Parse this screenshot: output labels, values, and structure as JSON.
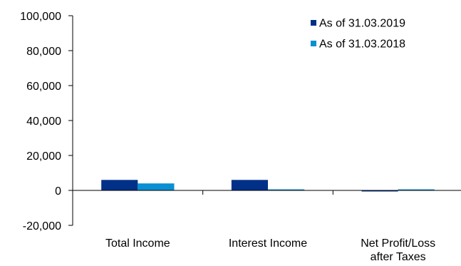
{
  "chart_data": {
    "type": "bar",
    "title": "",
    "xlabel": "",
    "ylabel": "",
    "categories": [
      [
        "Total Income"
      ],
      [
        "Interest Income"
      ],
      [
        "Net Profit/Loss",
        "after Taxes"
      ]
    ],
    "series": [
      {
        "name": "As of 31.03.2019",
        "color": "#003087",
        "values": [
          6000,
          6000,
          -500
        ]
      },
      {
        "name": "As of 31.03.2018",
        "color": "#0a8fd3",
        "values": [
          4000,
          0,
          500
        ]
      }
    ],
    "ylim": [
      -20000,
      100000
    ],
    "yticks": [
      -20000,
      0,
      20000,
      40000,
      60000,
      80000,
      100000
    ],
    "ytick_labels": [
      "-20,000",
      "0",
      "20,000",
      "40,000",
      "60,000",
      "80,000",
      "100,000"
    ],
    "grid": false,
    "legend_position": "top-right"
  }
}
